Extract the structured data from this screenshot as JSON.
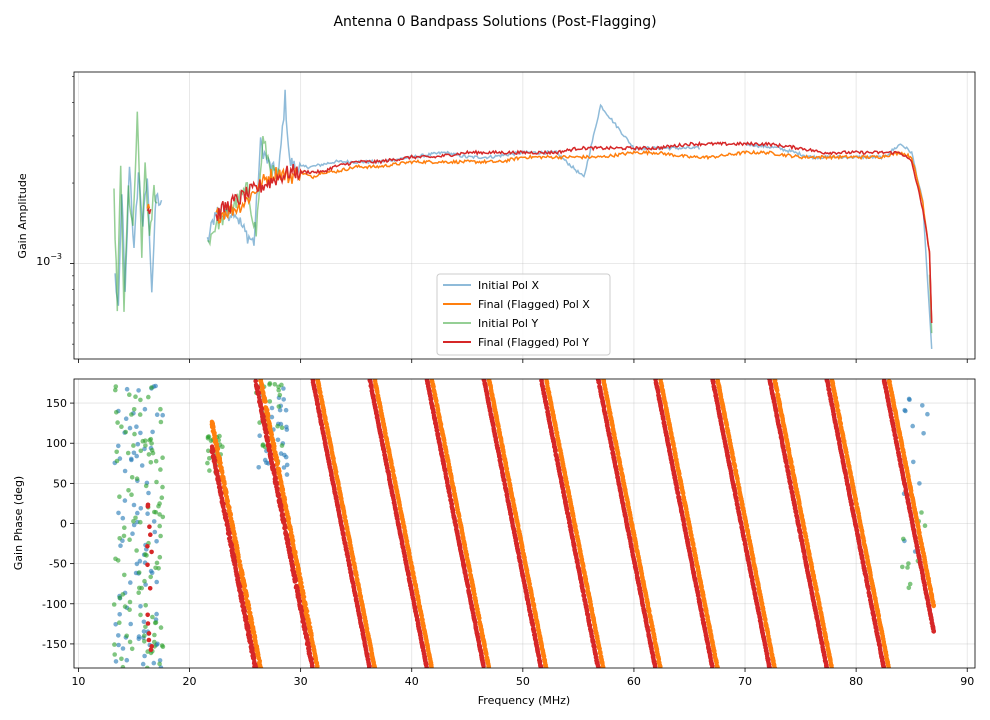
{
  "figure": {
    "title": "Antenna 0 Bandpass Solutions (Post-Flagging)"
  },
  "colors": {
    "initial_x": "#1f77b4",
    "final_x": "#ff7f0e",
    "initial_y": "#2ca02c",
    "final_y": "#d62728",
    "grid": "#b0b0b0"
  },
  "chart_data": [
    {
      "type": "line",
      "panel": "amplitude",
      "ylabel": "Gain Amplitude",
      "xlabel": "",
      "yscale": "log",
      "xlim": [
        9.6,
        90.7
      ],
      "ylim": [
        0.00044,
        0.0052
      ],
      "ytick_label": {
        "base": "10",
        "exp": "−3"
      },
      "xticks": [
        10,
        20,
        30,
        40,
        50,
        60,
        70,
        80,
        90
      ],
      "legend_location": "lower center",
      "series": [
        {
          "name": "Initial Pol X",
          "key": "initial_x",
          "alpha": 0.5,
          "x": [
            13.3,
            13.6,
            13.9,
            14.2,
            14.6,
            15.0,
            15.4,
            15.8,
            16.2,
            16.6,
            17.0,
            17.6,
            21.6,
            22.4,
            23.2,
            24.0,
            25.0,
            25.8,
            26.4,
            27.0,
            28.0,
            28.6,
            29.0,
            29.5,
            31,
            33,
            35,
            37,
            40,
            43,
            45,
            47,
            50,
            53,
            55.5,
            57,
            60,
            63,
            66,
            70,
            73,
            76,
            79,
            81.5,
            82.5,
            84,
            85,
            86,
            86.8
          ],
          "y": [
            0.0009,
            0.00065,
            0.0019,
            0.00075,
            0.0024,
            0.0011,
            0.0022,
            0.0014,
            0.0021,
            0.0008,
            0.0018,
            0.0016,
            0.0012,
            0.0016,
            0.0015,
            0.0016,
            0.0013,
            0.0012,
            0.0028,
            0.0024,
            0.0021,
            0.0042,
            0.0024,
            0.0023,
            0.0023,
            0.0024,
            0.0024,
            0.0024,
            0.0025,
            0.0026,
            0.0025,
            0.0025,
            0.0026,
            0.0026,
            0.0021,
            0.0039,
            0.0027,
            0.0027,
            0.0027,
            0.0028,
            0.0027,
            0.0025,
            0.0025,
            0.0025,
            0.0025,
            0.0028,
            0.0026,
            0.0017,
            0.00048
          ]
        },
        {
          "name": "Final (Flagged) Pol X",
          "key": "final_x",
          "alpha": 1.0,
          "x": [
            16.2,
            16.5,
            22.4,
            23,
            24,
            25,
            26,
            27,
            28,
            29,
            30,
            31,
            32,
            33,
            35,
            37,
            40,
            42,
            45,
            48,
            50,
            53,
            55,
            57,
            60,
            62,
            65,
            67,
            70,
            72,
            75,
            77,
            80,
            82,
            84,
            85,
            86,
            86.6,
            86.8
          ],
          "y": [
            0.0016,
            0.00155,
            0.0015,
            0.00155,
            0.0016,
            0.0017,
            0.0019,
            0.0021,
            0.0022,
            0.0021,
            0.0022,
            0.0021,
            0.0022,
            0.0022,
            0.0023,
            0.0023,
            0.0024,
            0.0024,
            0.0024,
            0.0024,
            0.0025,
            0.0025,
            0.0025,
            0.0025,
            0.0026,
            0.0026,
            0.0025,
            0.0025,
            0.0026,
            0.0026,
            0.0025,
            0.0025,
            0.0025,
            0.0025,
            0.0026,
            0.0025,
            0.0017,
            0.0011,
            0.0006
          ]
        },
        {
          "name": "Initial Pol Y",
          "key": "initial_y",
          "alpha": 0.5,
          "x": [
            13.2,
            13.5,
            13.8,
            14.1,
            14.5,
            14.9,
            15.3,
            15.7,
            16.0,
            16.4,
            16.8,
            17.2,
            21.6,
            22.4,
            23.2,
            24.2,
            25.2,
            26.0,
            26.6,
            27.4,
            28.2,
            86.6,
            86.8
          ],
          "y": [
            0.0018,
            0.0007,
            0.0022,
            0.00068,
            0.0019,
            0.0013,
            0.0035,
            0.0011,
            0.0024,
            0.0012,
            0.0019,
            0.0016,
            0.0012,
            0.0014,
            0.0015,
            0.0017,
            0.0019,
            0.0013,
            0.0029,
            0.0022,
            0.0021,
            0.0009,
            0.00055
          ]
        },
        {
          "name": "Final (Flagged) Pol Y",
          "key": "final_y",
          "alpha": 1.0,
          "x": [
            16.2,
            16.6,
            22.4,
            23,
            24,
            25,
            26,
            27,
            28,
            29,
            30,
            31,
            32,
            33,
            35,
            37,
            40,
            42,
            45,
            48,
            50,
            53,
            55,
            57,
            60,
            62,
            65,
            67,
            70,
            72,
            75,
            77,
            80,
            82,
            84,
            85,
            86,
            86.6,
            86.8
          ],
          "y": [
            0.0016,
            0.0016,
            0.0015,
            0.0016,
            0.0017,
            0.0018,
            0.0019,
            0.002,
            0.0021,
            0.0022,
            0.0022,
            0.0022,
            0.0022,
            0.0023,
            0.0024,
            0.0024,
            0.0025,
            0.0025,
            0.0026,
            0.0026,
            0.0026,
            0.0026,
            0.0027,
            0.0027,
            0.0027,
            0.0027,
            0.0028,
            0.0028,
            0.0028,
            0.0028,
            0.0027,
            0.0026,
            0.0026,
            0.0026,
            0.0026,
            0.0024,
            0.0016,
            0.0011,
            0.0006
          ]
        }
      ]
    },
    {
      "type": "scatter",
      "panel": "phase",
      "xlabel": "Frequency (MHz)",
      "ylabel": "Gain Phase (deg)",
      "xlim": [
        9.6,
        90.7
      ],
      "ylim": [
        -180,
        180
      ],
      "xticks": [
        10,
        20,
        30,
        40,
        50,
        60,
        70,
        80,
        90
      ],
      "yticks": [
        -150,
        -100,
        -50,
        0,
        50,
        100,
        150
      ],
      "slope_deg_per_mhz": -70,
      "wrap_deg": 360,
      "x_offset_mhz": 0.45,
      "anchor": {
        "x": 22,
        "phase": 95
      },
      "segments": [
        {
          "series": "final",
          "x_start": 22.0,
          "x_end": 31.0
        },
        {
          "series": "final",
          "x_start": 31.0,
          "x_end": 87.0
        }
      ],
      "scatter_clusters": [
        {
          "series": "initial_x",
          "x_min": 13.2,
          "x_max": 17.6,
          "y_min": -180,
          "y_max": 175,
          "count": 90
        },
        {
          "series": "initial_y",
          "x_min": 13.2,
          "x_max": 17.6,
          "y_min": -180,
          "y_max": 175,
          "count": 110
        },
        {
          "series": "final_y",
          "x_min": 16.2,
          "x_max": 16.6,
          "y_min": -170,
          "y_max": 30,
          "count": 14
        },
        {
          "series": "initial_y",
          "x_min": 21.6,
          "x_max": 23.0,
          "y_min": 60,
          "y_max": 110,
          "count": 24
        },
        {
          "series": "initial_x",
          "x_min": 26.0,
          "x_max": 28.8,
          "y_min": 60,
          "y_max": 175,
          "count": 34
        },
        {
          "series": "initial_y",
          "x_min": 26.0,
          "x_max": 28.4,
          "y_min": 70,
          "y_max": 175,
          "count": 26
        },
        {
          "series": "initial_x",
          "x_min": 84.0,
          "x_max": 86.8,
          "y_min": -40,
          "y_max": 160,
          "count": 14
        },
        {
          "series": "initial_y",
          "x_min": 84.0,
          "x_max": 86.8,
          "y_min": -90,
          "y_max": 20,
          "count": 10
        }
      ]
    }
  ]
}
